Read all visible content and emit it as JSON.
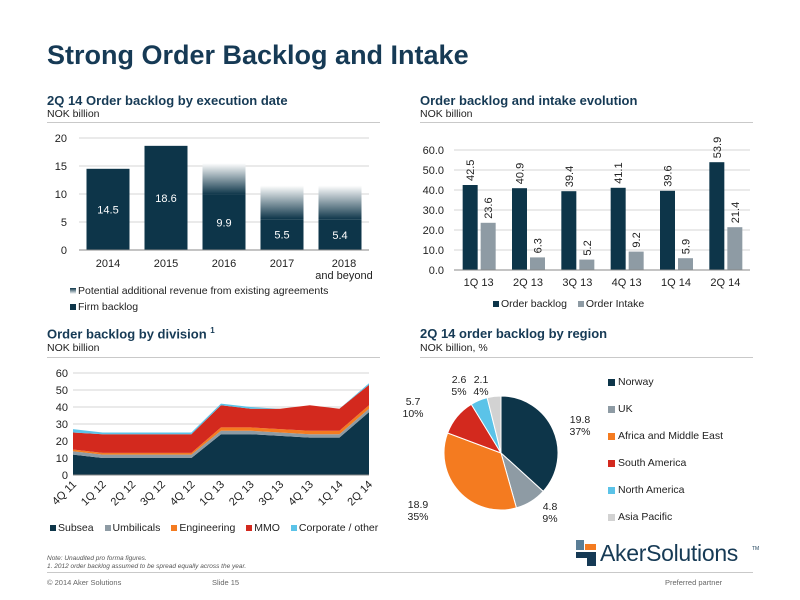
{
  "page": {
    "title": "Strong Order Backlog and Intake",
    "notes": [
      "Note: Unaudited pro forma figures.",
      "1.     2012 order backlog assumed to be spread equally across the year."
    ],
    "footer_left": "© 2014 Aker Solutions",
    "footer_mid": "Slide 15",
    "footer_right": "Preferred partner",
    "logo_text": "AkerSolutions",
    "logo_tm": "TM"
  },
  "colors": {
    "navy": "#0d3549",
    "gray": "#8e9ba4",
    "orange": "#f47b20",
    "red": "#d3291e",
    "cyan": "#5bc3e8",
    "lightgray": "#d2d2d2",
    "title": "#163a55"
  },
  "chart_data": [
    {
      "type": "bar",
      "title": "2Q 14 Order backlog by execution date",
      "subtitle": "NOK billion",
      "categories": [
        "2014",
        "2015",
        "2016",
        "2017",
        "2018 and beyond"
      ],
      "series": [
        {
          "name": "Firm backlog",
          "values": [
            14.5,
            18.6,
            9.9,
            5.5,
            5.4
          ]
        },
        {
          "name": "Potential additional revenue from existing agreements",
          "values": [
            0,
            0,
            5.6,
            6.0,
            6.1
          ]
        }
      ],
      "data_labels": [
        "14.5",
        "18.6",
        "9.9",
        "5.5",
        "5.4"
      ],
      "ylim": [
        0,
        20
      ],
      "yticks": [
        0,
        5,
        10,
        15,
        20
      ],
      "grid": true
    },
    {
      "type": "bar",
      "title": "Order backlog and intake evolution",
      "subtitle": "NOK billion",
      "categories": [
        "1Q 13",
        "2Q 13",
        "3Q 13",
        "4Q 13",
        "1Q 14",
        "2Q 14"
      ],
      "series": [
        {
          "name": "Order backlog",
          "values": [
            42.5,
            40.9,
            39.4,
            41.1,
            39.6,
            53.9
          ]
        },
        {
          "name": "Order Intake",
          "values": [
            23.6,
            6.3,
            5.2,
            9.2,
            5.9,
            21.4
          ]
        }
      ],
      "ylim": [
        0,
        60
      ],
      "yticks": [
        "0.0",
        "10.0",
        "20.0",
        "30.0",
        "40.0",
        "50.0",
        "60.0"
      ],
      "grid": true
    },
    {
      "type": "area",
      "title": "Order backlog by division",
      "title_superscript": "1",
      "subtitle": "NOK billion",
      "categories": [
        "4Q 11",
        "1Q 12",
        "2Q 12",
        "3Q 12",
        "4Q 12",
        "1Q 13",
        "2Q 13",
        "3Q 13",
        "4Q 13",
        "1Q 14",
        "2Q 14"
      ],
      "series": [
        {
          "name": "Subsea",
          "values": [
            12,
            10,
            10,
            10,
            10,
            24,
            24,
            23,
            22,
            22,
            37
          ]
        },
        {
          "name": "Umbilicals",
          "values": [
            2,
            2,
            2,
            2,
            2,
            2,
            2,
            2,
            2,
            2,
            2
          ]
        },
        {
          "name": "Engineering",
          "values": [
            1,
            1,
            1,
            1,
            1,
            2,
            2,
            2,
            2,
            2,
            2
          ]
        },
        {
          "name": "MMO",
          "values": [
            10,
            11,
            11,
            11,
            11,
            13,
            11,
            12,
            15,
            13,
            12
          ]
        },
        {
          "name": "Corporate / other",
          "values": [
            2,
            1,
            1,
            1,
            1,
            1,
            1,
            0,
            0,
            0,
            1
          ]
        }
      ],
      "ylim": [
        0,
        60
      ],
      "yticks": [
        0,
        10,
        20,
        30,
        40,
        50,
        60
      ],
      "grid": true
    },
    {
      "type": "pie",
      "title": "2Q 14 order backlog by region",
      "subtitle": "NOK billion, %",
      "slices": [
        {
          "name": "Norway",
          "value": 19.8,
          "pct": "37%"
        },
        {
          "name": "UK",
          "value": 4.8,
          "pct": "9%"
        },
        {
          "name": "Africa and Middle East",
          "value": 18.9,
          "pct": "35%"
        },
        {
          "name": "South America",
          "value": 5.7,
          "pct": "10%"
        },
        {
          "name": "North America",
          "value": 2.6,
          "pct": "5%"
        },
        {
          "name": "Asia Pacific",
          "value": 2.1,
          "pct": "4%"
        }
      ]
    }
  ]
}
